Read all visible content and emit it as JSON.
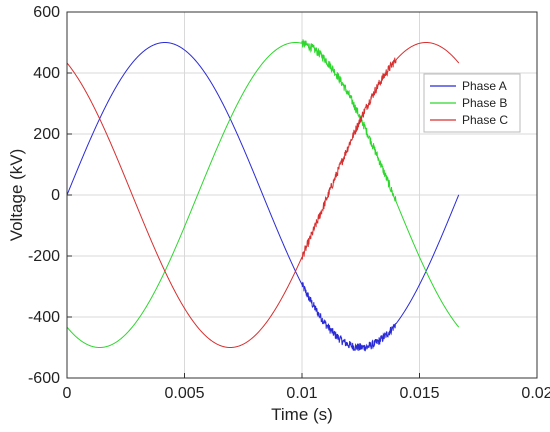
{
  "chart_data": {
    "type": "line",
    "title": "",
    "xlabel": "Time (s)",
    "ylabel": "Voltage (kV)",
    "xlim": [
      0,
      0.02
    ],
    "ylim": [
      -600,
      600
    ],
    "xticks": [
      0,
      0.005,
      0.01,
      0.015,
      0.02
    ],
    "xtick_labels": [
      "0",
      "0.005",
      "0.01",
      "0.015",
      "0.02"
    ],
    "yticks": [
      -600,
      -400,
      -200,
      0,
      200,
      400,
      600
    ],
    "ytick_labels": [
      "-600",
      "-400",
      "-200",
      "0",
      "200",
      "400",
      "600"
    ],
    "grid": true,
    "legend_position": "upper-right",
    "t_end": 0.01667,
    "amplitude": 500,
    "frequency_hz": 60,
    "noise_window": [
      0.01,
      0.014
    ],
    "series": [
      {
        "name": "Phase A",
        "color": "#2b2bd6",
        "phase_deg": 0,
        "noise_kv": 14
      },
      {
        "name": "Phase B",
        "color": "#2ed62e",
        "phase_deg": -120,
        "noise_kv": 14
      },
      {
        "name": "Phase C",
        "color": "#d63030",
        "phase_deg": 120,
        "noise_kv": 14
      }
    ]
  }
}
